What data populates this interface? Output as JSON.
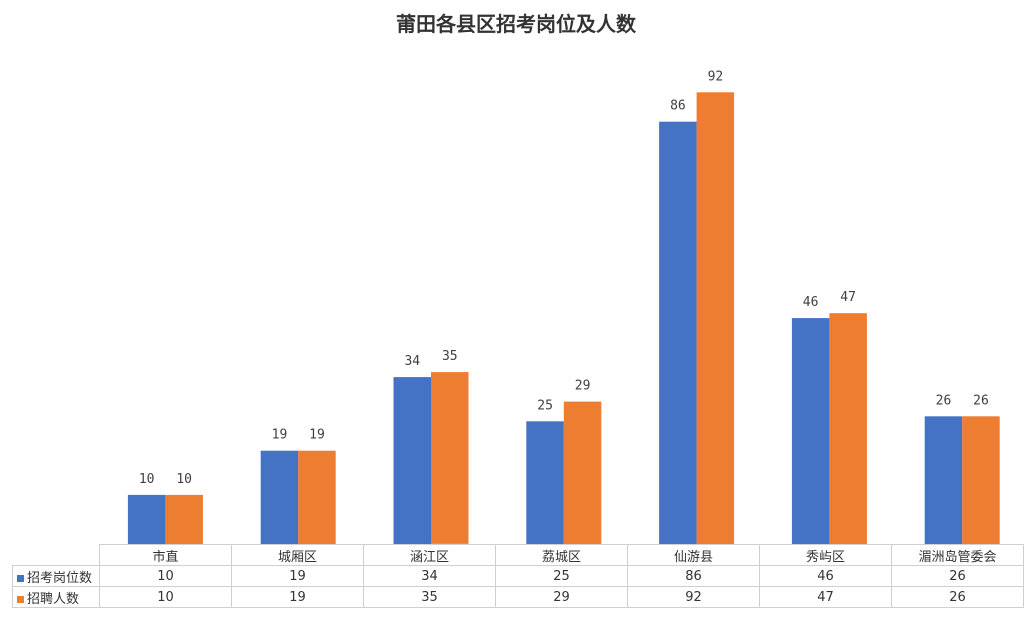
{
  "chart_data": {
    "type": "bar",
    "title": "莆田各县区招考岗位及人数",
    "categories": [
      "市直",
      "城厢区",
      "涵江区",
      "荔城区",
      "仙游县",
      "秀屿区",
      "湄洲岛管委会"
    ],
    "series": [
      {
        "name": "招考岗位数",
        "values": [
          10,
          19,
          34,
          25,
          86,
          46,
          26
        ],
        "color": "#4472C4"
      },
      {
        "name": "招聘人数",
        "values": [
          10,
          19,
          35,
          29,
          92,
          47,
          26
        ],
        "color": "#ED7D31"
      }
    ],
    "ylim": [
      0,
      100
    ],
    "grid": false,
    "data_table": true
  }
}
